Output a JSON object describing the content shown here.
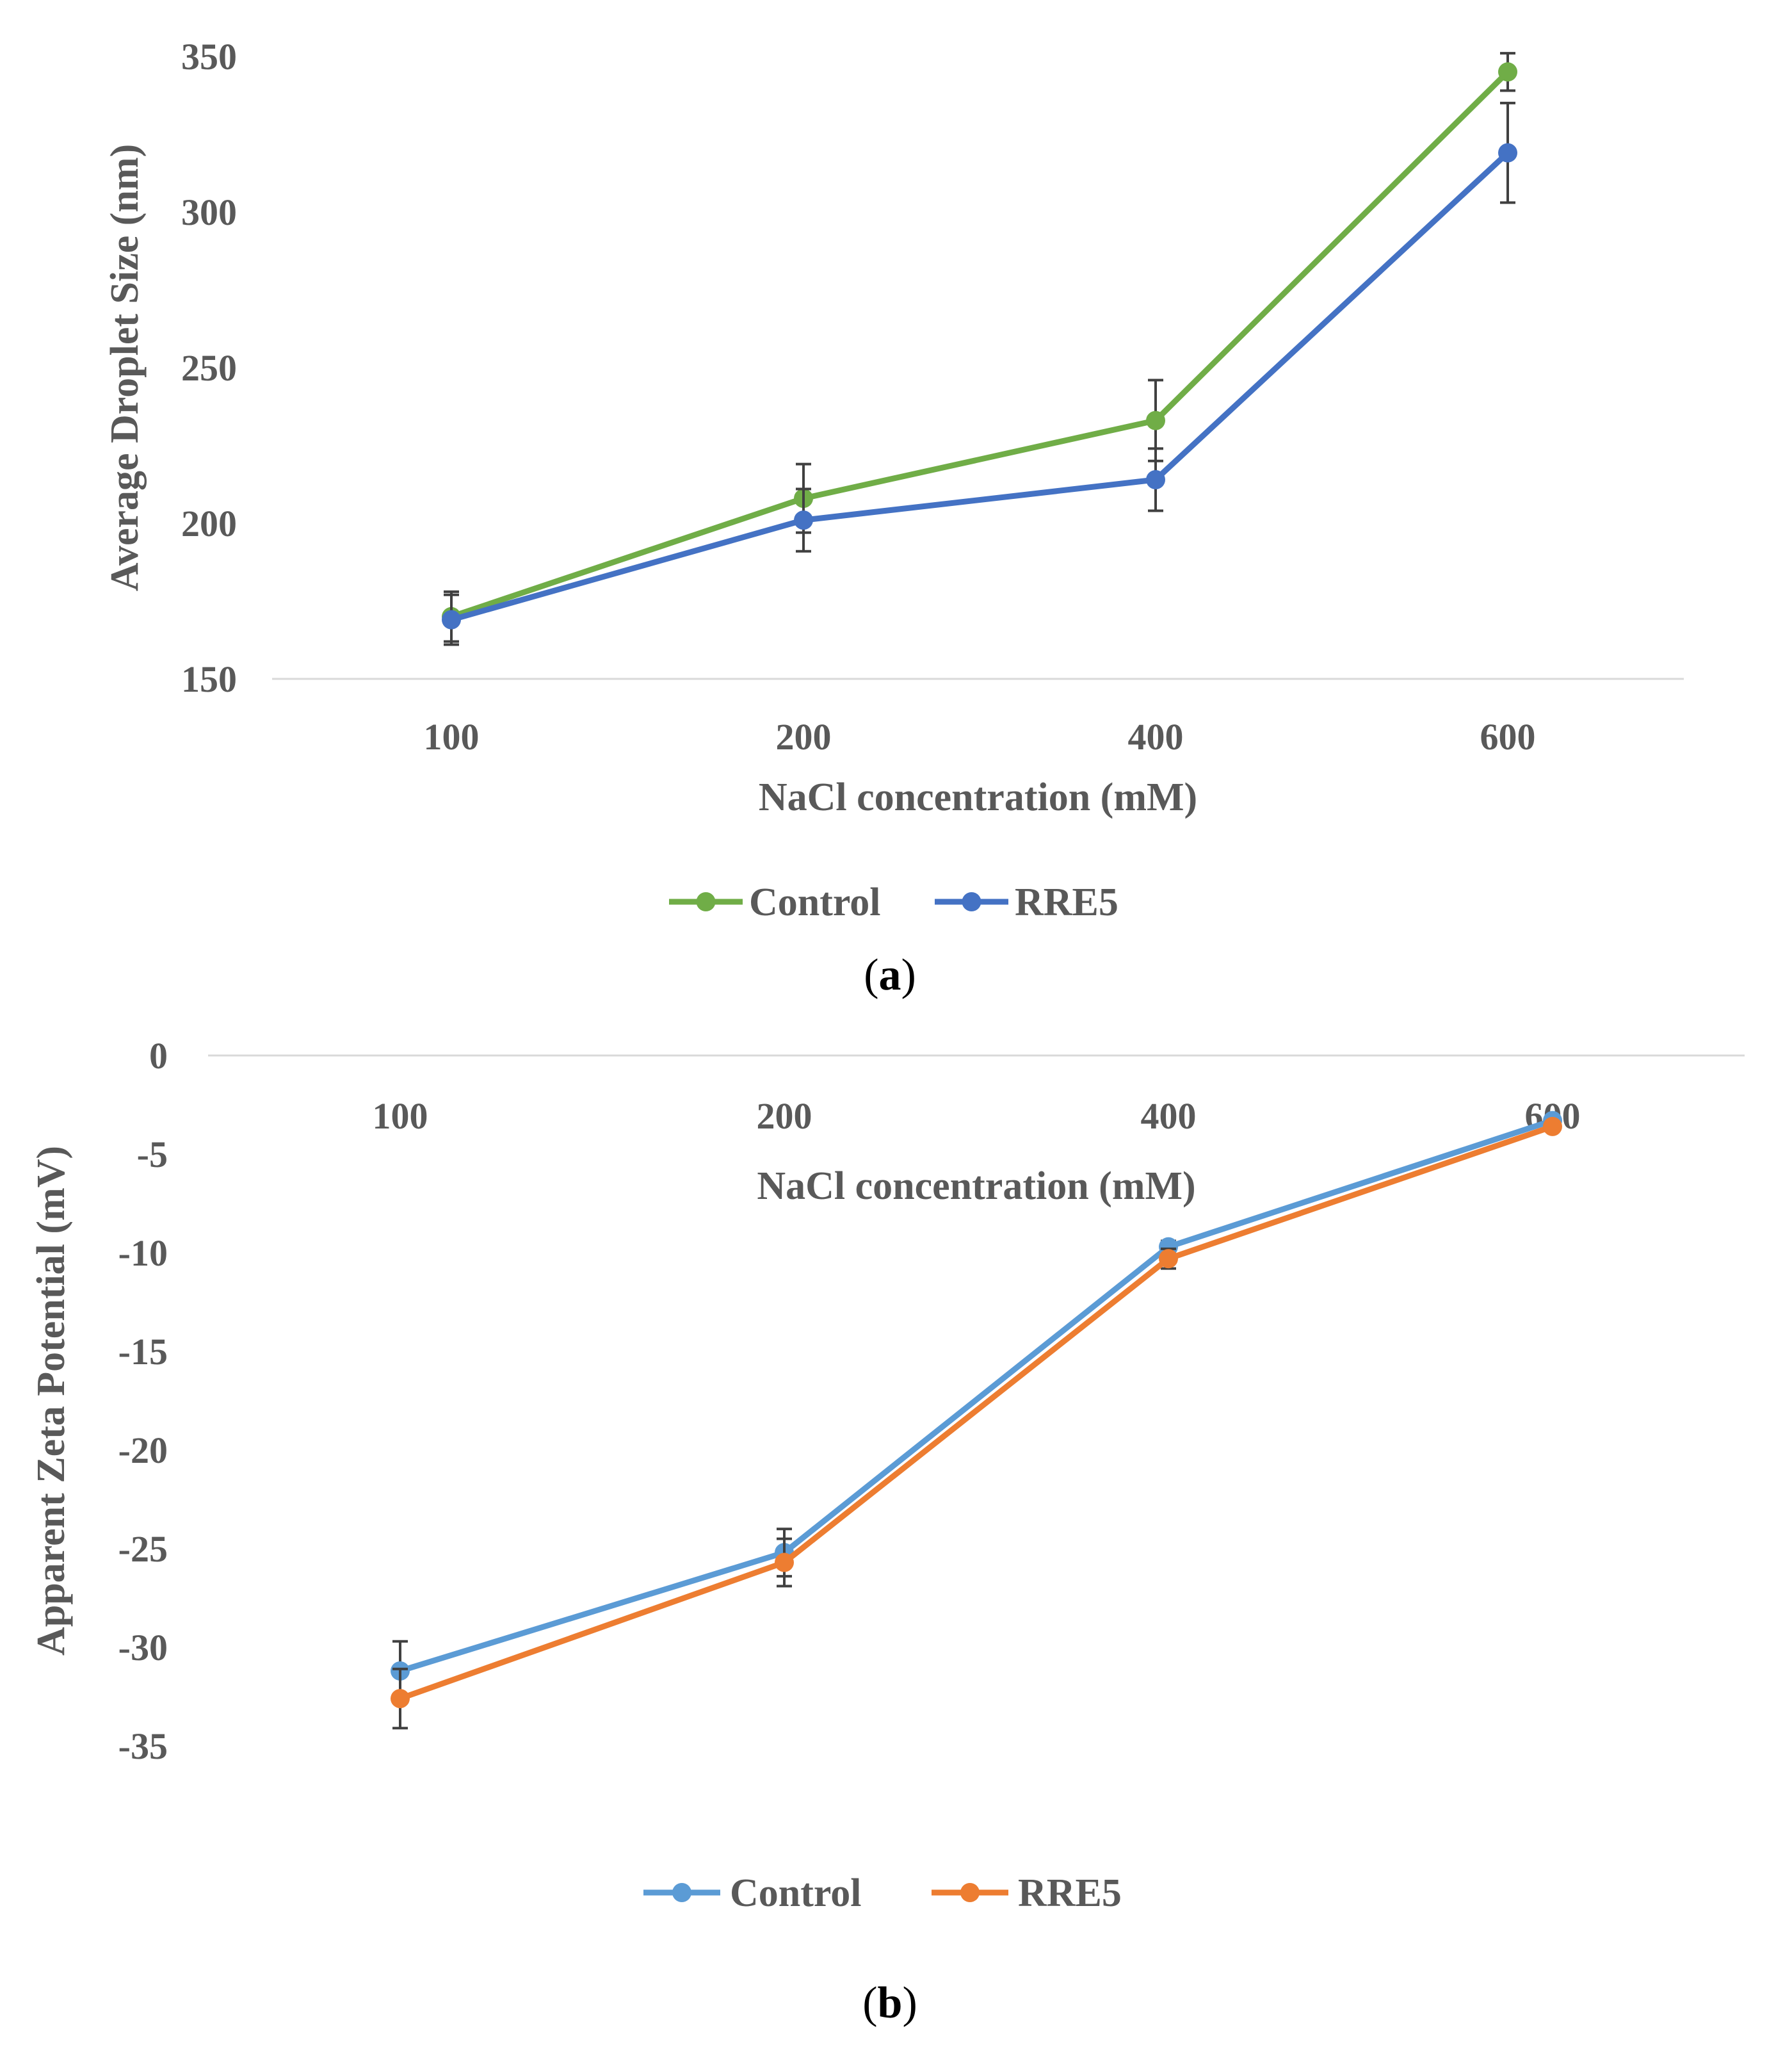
{
  "chart_data": [
    {
      "panel": "a",
      "type": "line",
      "categories": [
        "100",
        "200",
        "400",
        "600"
      ],
      "xlabel": "NaCl concentration (mM)",
      "ylabel": "Average Droplet Size (nm)",
      "ylim": [
        150,
        350
      ],
      "yticks": [
        150,
        200,
        250,
        300,
        350
      ],
      "grid": false,
      "legend_position": "bottom",
      "series": [
        {
          "name": "Control",
          "color": "#70ad47",
          "values": [
            170,
            208,
            233,
            345
          ],
          "errors": [
            8,
            11,
            13,
            6
          ]
        },
        {
          "name": "RRE5",
          "color": "#4472c4",
          "values": [
            169,
            201,
            214,
            319
          ],
          "errors": [
            8,
            10,
            10,
            16
          ]
        }
      ]
    },
    {
      "panel": "b",
      "type": "line",
      "categories": [
        "100",
        "200",
        "400",
        "600"
      ],
      "xlabel": "NaCl concentration (mM)",
      "ylabel": "Apparent Zeta Potential (mV)",
      "ylim": [
        -35,
        0
      ],
      "yticks": [
        0,
        -5,
        -10,
        -15,
        -20,
        -25,
        -30,
        -35
      ],
      "grid": false,
      "legend_position": "bottom",
      "series": [
        {
          "name": "Control",
          "color": "#5b9bd5",
          "values": [
            -31.2,
            -25.2,
            -9.7,
            -3.3
          ],
          "errors": [
            1.5,
            1.2,
            0.3,
            0.2
          ]
        },
        {
          "name": "RRE5",
          "color": "#ed7d31",
          "values": [
            -32.6,
            -25.7,
            -10.3,
            -3.6
          ],
          "errors": [
            1.5,
            1.2,
            0.5,
            0.2
          ]
        }
      ]
    }
  ],
  "panel_labels": {
    "a": {
      "open": "(",
      "letter": "a",
      "close": ")"
    },
    "b": {
      "open": "(",
      "letter": "b",
      "close": ")"
    }
  },
  "colors": {
    "axis_line": "#d9d9d9",
    "error_bar": "#404040",
    "text": "#595959"
  }
}
